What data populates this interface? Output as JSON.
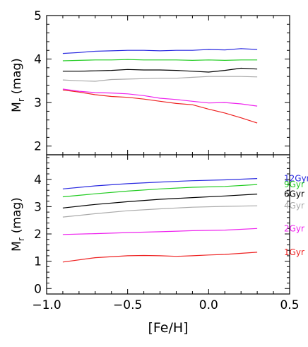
{
  "chart_data": [
    {
      "type": "line",
      "panel": "top",
      "ylabel_main": "M",
      "ylabel_sub": "r",
      "ylabel_unit": "(mag)",
      "xlim": [
        -1.0,
        0.5
      ],
      "ylim": [
        1.8,
        5.0
      ],
      "yticks": [
        2,
        3,
        4,
        5
      ],
      "ytick_labels": [
        "2",
        "3",
        "4",
        "5"
      ],
      "series": [
        {
          "color": "#2a2ae0",
          "x": [
            -0.9,
            -0.8,
            -0.7,
            -0.6,
            -0.5,
            -0.4,
            -0.3,
            -0.2,
            -0.1,
            0.0,
            0.1,
            0.2,
            0.3
          ],
          "y": [
            4.13,
            4.15,
            4.18,
            4.19,
            4.2,
            4.2,
            4.19,
            4.2,
            4.2,
            4.22,
            4.21,
            4.24,
            4.22
          ]
        },
        {
          "color": "#22cc22",
          "x": [
            -0.9,
            -0.8,
            -0.7,
            -0.6,
            -0.5,
            -0.4,
            -0.3,
            -0.2,
            -0.1,
            0.0,
            0.1,
            0.2,
            0.3
          ],
          "y": [
            3.96,
            3.97,
            3.98,
            3.98,
            3.99,
            3.98,
            3.98,
            3.98,
            3.97,
            3.98,
            3.97,
            3.98,
            3.98
          ]
        },
        {
          "color": "#000000",
          "x": [
            -0.9,
            -0.8,
            -0.7,
            -0.6,
            -0.5,
            -0.4,
            -0.3,
            -0.2,
            -0.1,
            0.0,
            0.1,
            0.2,
            0.3
          ],
          "y": [
            3.72,
            3.72,
            3.73,
            3.74,
            3.76,
            3.75,
            3.75,
            3.74,
            3.72,
            3.7,
            3.74,
            3.79,
            3.77
          ]
        },
        {
          "color": "#aaaaaa",
          "x": [
            -0.9,
            -0.8,
            -0.7,
            -0.6,
            -0.5,
            -0.4,
            -0.3,
            -0.2,
            -0.1,
            0.0,
            0.1,
            0.2,
            0.3
          ],
          "y": [
            3.52,
            3.5,
            3.49,
            3.53,
            3.54,
            3.55,
            3.56,
            3.56,
            3.58,
            3.6,
            3.6,
            3.6,
            3.59
          ]
        },
        {
          "color": "#ee22ee",
          "x": [
            -0.9,
            -0.8,
            -0.7,
            -0.6,
            -0.5,
            -0.4,
            -0.3,
            -0.2,
            -0.1,
            0.0,
            0.1,
            0.2,
            0.3
          ],
          "y": [
            3.31,
            3.26,
            3.23,
            3.22,
            3.2,
            3.16,
            3.1,
            3.07,
            3.03,
            2.99,
            3.0,
            2.97,
            2.92
          ]
        },
        {
          "color": "#ee2222",
          "x": [
            -0.9,
            -0.8,
            -0.7,
            -0.6,
            -0.5,
            -0.4,
            -0.3,
            -0.2,
            -0.1,
            0.0,
            0.1,
            0.2,
            0.3
          ],
          "y": [
            3.29,
            3.24,
            3.18,
            3.14,
            3.12,
            3.08,
            3.03,
            2.98,
            2.95,
            2.85,
            2.76,
            2.65,
            2.53
          ]
        }
      ]
    },
    {
      "type": "line",
      "panel": "bottom",
      "xlabel": "[Fe/H]",
      "ylabel_main": "M",
      "ylabel_sub": "r",
      "ylabel_unit": "(mag)",
      "xlim": [
        -1.0,
        0.5
      ],
      "ylim": [
        -0.2,
        4.9
      ],
      "xticks": [
        -1.0,
        -0.5,
        0.0,
        0.5
      ],
      "xtick_labels": [
        "−1.0",
        "−0.5",
        "0.0",
        "0.5"
      ],
      "yticks": [
        0,
        1,
        2,
        3,
        4
      ],
      "ytick_labels": [
        "0",
        "1",
        "2",
        "3",
        "4"
      ],
      "series": [
        {
          "name": "12Gyr",
          "color": "#2a2ae0",
          "x": [
            -0.9,
            -0.7,
            -0.5,
            -0.3,
            -0.1,
            0.1,
            0.3
          ],
          "y": [
            3.65,
            3.76,
            3.84,
            3.9,
            3.95,
            3.98,
            4.03
          ]
        },
        {
          "name": "9Gyr",
          "color": "#22cc22",
          "x": [
            -0.9,
            -0.7,
            -0.5,
            -0.3,
            -0.1,
            0.1,
            0.3
          ],
          "y": [
            3.36,
            3.47,
            3.57,
            3.65,
            3.71,
            3.74,
            3.81
          ]
        },
        {
          "name": "6Gyr",
          "color": "#000000",
          "x": [
            -0.9,
            -0.7,
            -0.5,
            -0.3,
            -0.1,
            0.1,
            0.3
          ],
          "y": [
            2.95,
            3.08,
            3.18,
            3.27,
            3.33,
            3.39,
            3.46
          ]
        },
        {
          "name": "4Gyr",
          "color": "#aaaaaa",
          "x": [
            -0.9,
            -0.7,
            -0.5,
            -0.3,
            -0.1,
            0.1,
            0.3
          ],
          "y": [
            2.62,
            2.74,
            2.85,
            2.92,
            2.98,
            3.01,
            3.03
          ]
        },
        {
          "name": "2Gyr",
          "color": "#ee22ee",
          "x": [
            -0.9,
            -0.7,
            -0.5,
            -0.3,
            -0.1,
            0.1,
            0.3
          ],
          "y": [
            1.98,
            2.01,
            2.05,
            2.08,
            2.12,
            2.14,
            2.2
          ]
        },
        {
          "name": "1Gyr",
          "color": "#ee2222",
          "x": [
            -0.9,
            -0.7,
            -0.5,
            -0.4,
            -0.3,
            -0.2,
            -0.1,
            0.0,
            0.1,
            0.3
          ],
          "y": [
            0.97,
            1.13,
            1.2,
            1.21,
            1.2,
            1.18,
            1.2,
            1.23,
            1.25,
            1.33
          ]
        }
      ]
    }
  ]
}
